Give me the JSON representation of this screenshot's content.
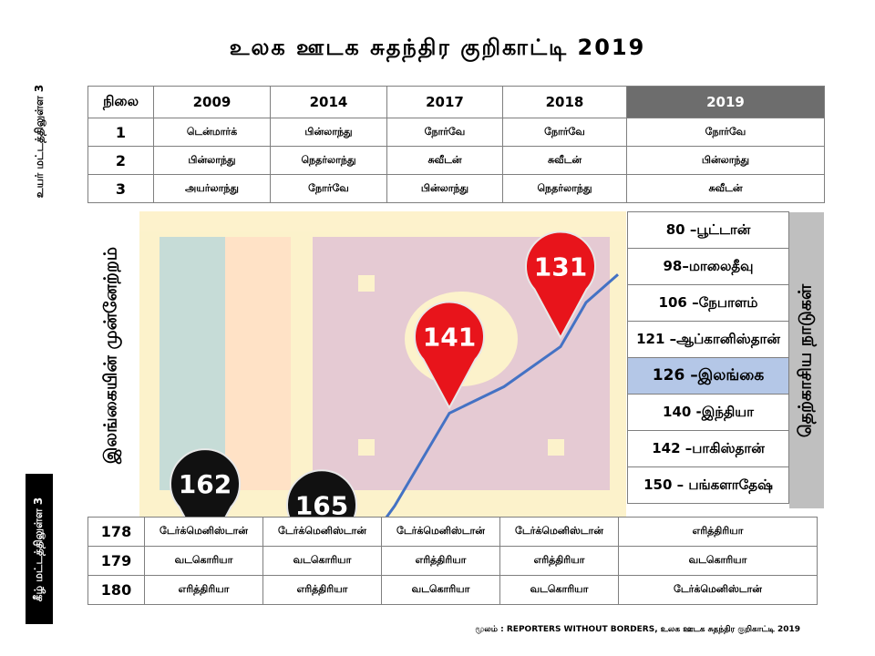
{
  "title": "உலக ஊடக சுதந்திர குறிகாட்டி 2019",
  "left_top_label": "உயர் மட்டத்திலுள்ள 3",
  "left_bottom_label": "கீழ் மட்டத்திலுள்ள 3",
  "chart_axis_label": "இலங்கையின் முன்னேற்றம்",
  "top_table": {
    "header": [
      "நிலை",
      "2009",
      "2014",
      "2017",
      "2018",
      "2019"
    ],
    "rows": [
      [
        "1",
        "டென்மார்க்",
        "பின்லாந்து",
        "நோர்வே",
        "நோர்வே",
        "நோர்வே"
      ],
      [
        "2",
        "பின்லாந்து",
        "நெதர்லாந்து",
        "சுவீடன்",
        "சுவீடன்",
        "பின்லாந்து"
      ],
      [
        "3",
        "அயர்லாந்து",
        "நோர்வே",
        "பின்லாந்து",
        "நெதர்லாந்து",
        "சுவீடன்"
      ]
    ]
  },
  "bottom_table": {
    "rows": [
      [
        "178",
        "டேர்க்மெனிஸ்டான்",
        "டேர்க்மெனிஸ்டான்",
        "டேர்க்மெனிஸ்டான்",
        "டேர்க்மெனிஸ்டான்",
        "எரித்திரியா"
      ],
      [
        "179",
        "வடகொரியா",
        "வடகொரியா",
        "எரித்திரியா",
        "எரித்திரியா",
        "வடகொரியா"
      ],
      [
        "180",
        "எரித்திரியா",
        "எரித்திரியா",
        "வடகொரியா",
        "வடகொரியா",
        "டேர்க்மெனிஸ்டான்"
      ]
    ]
  },
  "south_asia": {
    "heading": "தெற்காசிய நாடுகள்",
    "items": [
      "80 –பூட்டான்",
      "98–மாலைதீவு",
      "106 –நேபாளம்",
      "121 –ஆப்கானிஸ்தான்",
      "126 –இலங்கை",
      "140 -இந்தியா",
      "142 –பாகிஸ்தான்",
      "150 – பங்களாதேஷ்"
    ],
    "highlight_index": 4
  },
  "source": "மூலம் : REPORTERS WITHOUT BORDERS, உலக ஊடக சுதந்திர குறிகாட்டி 2019",
  "chart_data": {
    "type": "line",
    "markers": [
      {
        "label": "162",
        "value": 162,
        "color": "#111111"
      },
      {
        "label": "165",
        "value": 165,
        "color": "#111111"
      },
      {
        "label": "141",
        "value": 141,
        "color": "#e8141b"
      },
      {
        "label": "131",
        "value": 131,
        "color": "#e8141b"
      }
    ],
    "line_color": "#4472c4",
    "flag_colors": {
      "bg": "#f5c518",
      "green": "#00664f",
      "orange": "#ff7f00",
      "maroon": "#8d153a"
    }
  }
}
